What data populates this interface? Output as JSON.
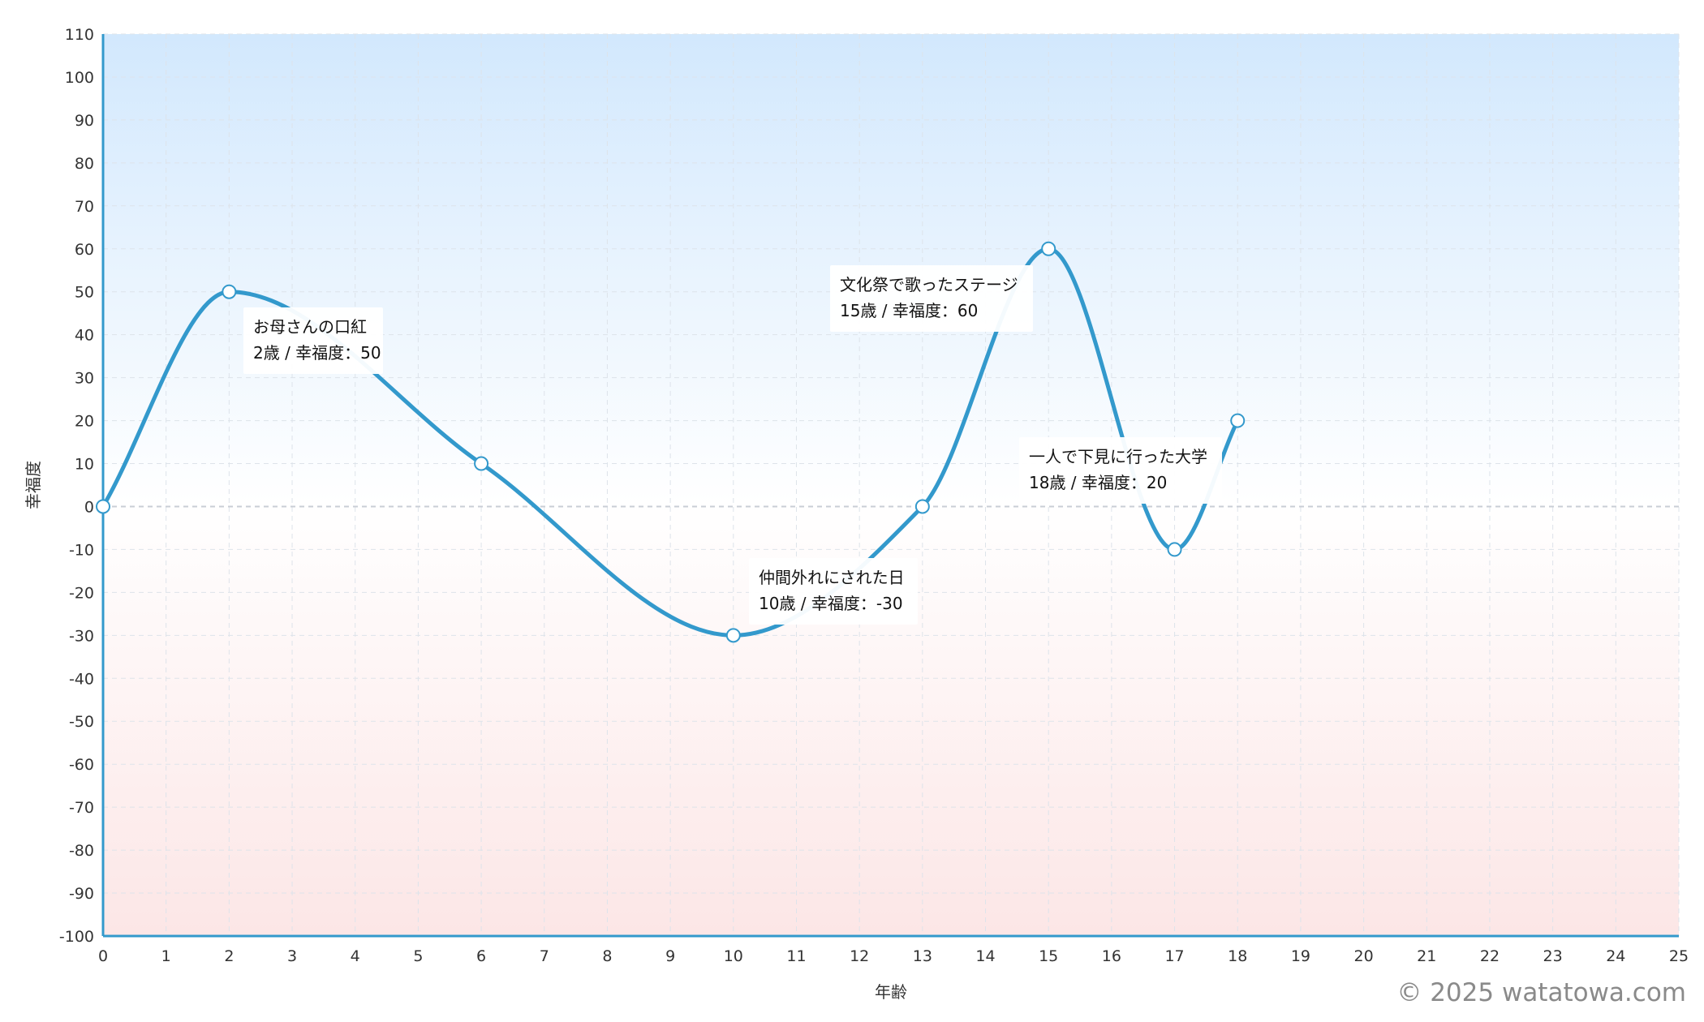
{
  "chart_data": {
    "type": "line",
    "xlabel": "年齢",
    "ylabel": "幸福度",
    "xlim": [
      0,
      25
    ],
    "ylim": [
      -100,
      110
    ],
    "x_ticks": [
      0,
      1,
      2,
      3,
      4,
      5,
      6,
      7,
      8,
      9,
      10,
      11,
      12,
      13,
      14,
      15,
      16,
      17,
      18,
      19,
      20,
      21,
      22,
      23,
      24,
      25
    ],
    "y_ticks": [
      110,
      100,
      90,
      80,
      70,
      60,
      50,
      40,
      30,
      20,
      10,
      0,
      -10,
      -20,
      -30,
      -40,
      -50,
      -60,
      -70,
      -80,
      -90,
      -100
    ],
    "grid": true,
    "line_color": "#3399cc",
    "background_positive_color": "#d2e8fd",
    "background_negative_color": "#fce6e6",
    "series": [
      {
        "points": [
          {
            "x": 0,
            "y": 0
          },
          {
            "x": 2,
            "y": 50
          },
          {
            "x": 6,
            "y": 10
          },
          {
            "x": 10,
            "y": -30
          },
          {
            "x": 13,
            "y": 0
          },
          {
            "x": 15,
            "y": 60
          },
          {
            "x": 17,
            "y": -10
          },
          {
            "x": 18,
            "y": 20
          }
        ]
      }
    ],
    "annotations": [
      {
        "x": 2,
        "y": 50,
        "title": "お母さんの口紅",
        "detail": "2歳 / 幸福度：50"
      },
      {
        "x": 10,
        "y": -30,
        "title": "仲間外れにされた日",
        "detail": "10歳 / 幸福度：-30"
      },
      {
        "x": 15,
        "y": 60,
        "title": "文化祭で歌ったステージ",
        "detail": "15歳 / 幸福度：60"
      },
      {
        "x": 18,
        "y": 20,
        "title": "一人で下見に行った大学",
        "detail": "18歳 / 幸福度：20"
      }
    ]
  },
  "credit": "© 2025 watatowa.com"
}
